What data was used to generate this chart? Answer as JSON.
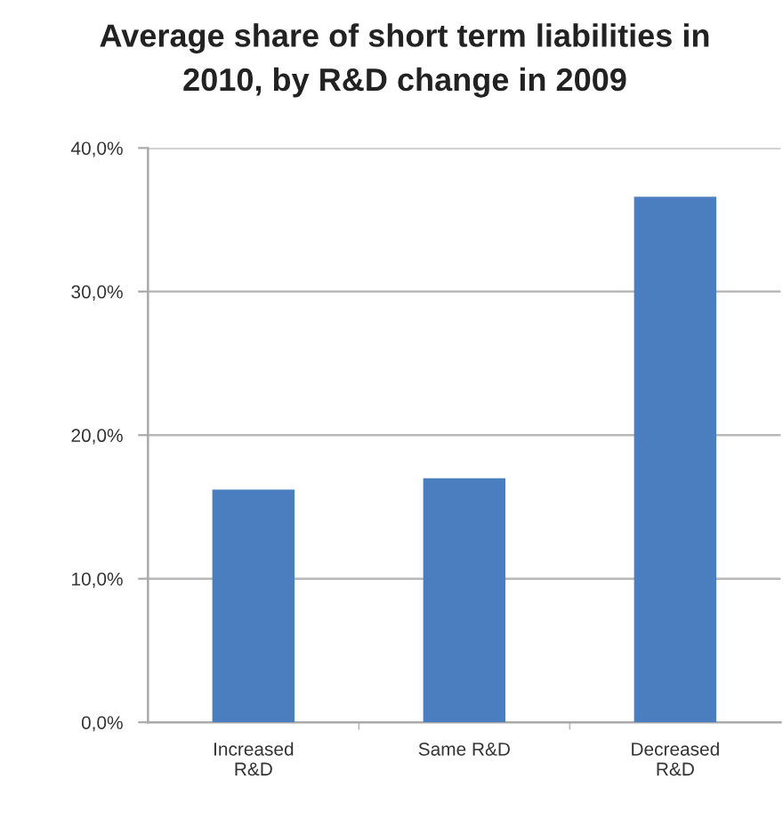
{
  "chart_data": {
    "type": "bar",
    "title": "Average share of short term liabilities in\n2010, by R&D change in 2009",
    "categories": [
      "Increased\nR&D",
      "Same R&D",
      "Decreased\nR&D"
    ],
    "values": [
      16.2,
      17.0,
      36.6
    ],
    "color": "#4a7ebf",
    "ylim": [
      0,
      40
    ],
    "yticks": [
      {
        "value": 0,
        "label": "0,0%"
      },
      {
        "value": 10,
        "label": "10,0%"
      },
      {
        "value": 20,
        "label": "20,0%"
      },
      {
        "value": 30,
        "label": "30,0%"
      },
      {
        "value": 40,
        "label": "40,0%"
      }
    ],
    "grid": "y",
    "legend": false
  }
}
